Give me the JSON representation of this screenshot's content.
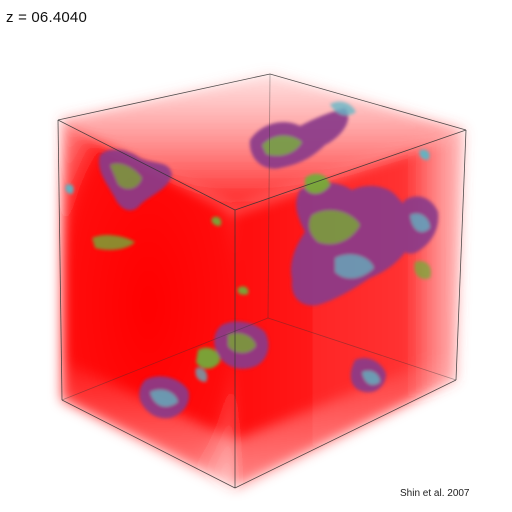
{
  "redshift": {
    "label": "z = 06.4040"
  },
  "credit": {
    "text": "Shin et al. 2007"
  },
  "colors": {
    "background": "#ffffff",
    "volume_fill": "#ff0000",
    "cube_edges": "#333333",
    "structure_purple": "#8a3a8a",
    "structure_green": "#6fae3a",
    "structure_cyan": "#58b8c8"
  }
}
